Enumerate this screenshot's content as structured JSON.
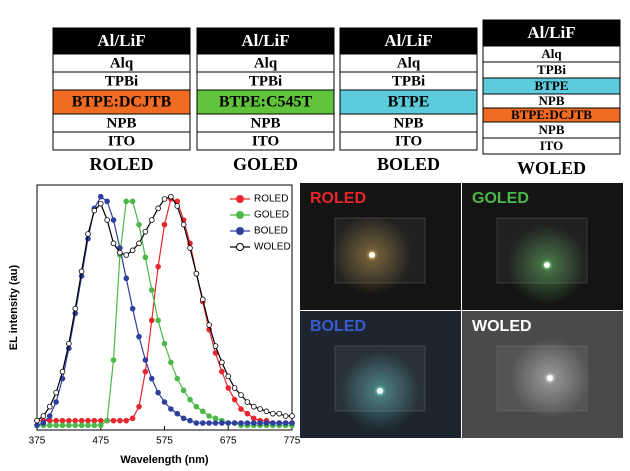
{
  "device_stacks": [
    {
      "name": "ROLED",
      "layers": [
        {
          "label": "Al/LiF",
          "color": "#000000"
        },
        {
          "label": "Alq",
          "color": "#ffffff"
        },
        {
          "label": "TPBi",
          "color": "#ffffff"
        },
        {
          "label": "BTPE:DCJTB",
          "color": "#f26b22"
        },
        {
          "label": "NPB",
          "color": "#ffffff"
        },
        {
          "label": "ITO",
          "color": "#ffffff"
        }
      ]
    },
    {
      "name": "GOLED",
      "layers": [
        {
          "label": "Al/LiF",
          "color": "#000000"
        },
        {
          "label": "Alq",
          "color": "#ffffff"
        },
        {
          "label": "TPBi",
          "color": "#ffffff"
        },
        {
          "label": "BTPE:C545T",
          "color": "#5fc43c"
        },
        {
          "label": "NPB",
          "color": "#ffffff"
        },
        {
          "label": "ITO",
          "color": "#ffffff"
        }
      ]
    },
    {
      "name": "BOLED",
      "layers": [
        {
          "label": "Al/LiF",
          "color": "#000000"
        },
        {
          "label": "Alq",
          "color": "#ffffff"
        },
        {
          "label": "TPBi",
          "color": "#ffffff"
        },
        {
          "label": "BTPE",
          "color": "#5ccbdb"
        },
        {
          "label": "NPB",
          "color": "#ffffff"
        },
        {
          "label": "ITO",
          "color": "#ffffff"
        }
      ]
    },
    {
      "name": "WOLED",
      "layers": [
        {
          "label": "Al/LiF",
          "color": "#000000"
        },
        {
          "label": "Alq",
          "color": "#ffffff"
        },
        {
          "label": "TPBi",
          "color": "#ffffff"
        },
        {
          "label": "BTPE",
          "color": "#5ccbdb"
        },
        {
          "label": "NPB",
          "color": "#ffffff"
        },
        {
          "label": "BTPE:DCJTB",
          "color": "#f26b22"
        },
        {
          "label": "NPB",
          "color": "#ffffff"
        },
        {
          "label": "ITO",
          "color": "#ffffff"
        }
      ]
    }
  ],
  "chart_data": {
    "type": "line",
    "x_label": "Wavelength (nm)",
    "y_label": "EL intensity (au)",
    "x": [
      375,
      385,
      395,
      405,
      415,
      425,
      435,
      445,
      455,
      465,
      475,
      485,
      495,
      505,
      515,
      525,
      535,
      545,
      555,
      565,
      575,
      585,
      595,
      605,
      615,
      625,
      635,
      645,
      655,
      665,
      675,
      685,
      695,
      705,
      715,
      725,
      735,
      745,
      755,
      765,
      775
    ],
    "xlim": [
      375,
      775
    ],
    "xticks": [
      375,
      475,
      575,
      675,
      775
    ],
    "ylim": [
      0,
      1.05
    ],
    "legend": "upper right",
    "series": [
      {
        "name": "ROLED",
        "color": "#e8262b",
        "marker": "filled",
        "values": [
          0.04,
          0.04,
          0.04,
          0.04,
          0.04,
          0.04,
          0.04,
          0.04,
          0.04,
          0.04,
          0.04,
          0.04,
          0.04,
          0.04,
          0.04,
          0.05,
          0.1,
          0.25,
          0.47,
          0.7,
          0.88,
          0.99,
          0.98,
          0.9,
          0.8,
          0.67,
          0.55,
          0.43,
          0.33,
          0.25,
          0.18,
          0.13,
          0.09,
          0.07,
          0.05,
          0.04,
          0.04,
          0.03,
          0.03,
          0.03,
          0.03
        ]
      },
      {
        "name": "GOLED",
        "color": "#4cb848",
        "marker": "filled",
        "values": [
          0.02,
          0.02,
          0.02,
          0.02,
          0.02,
          0.02,
          0.02,
          0.02,
          0.02,
          0.02,
          0.02,
          0.04,
          0.3,
          0.75,
          0.98,
          0.98,
          0.88,
          0.74,
          0.6,
          0.47,
          0.37,
          0.29,
          0.22,
          0.17,
          0.13,
          0.1,
          0.08,
          0.06,
          0.05,
          0.04,
          0.03,
          0.03,
          0.02,
          0.02,
          0.02,
          0.02,
          0.02,
          0.02,
          0.02,
          0.02,
          0.02
        ]
      },
      {
        "name": "BOLED",
        "color": "#2e3f9e",
        "marker": "filled",
        "values": [
          0.02,
          0.03,
          0.06,
          0.12,
          0.22,
          0.35,
          0.5,
          0.66,
          0.82,
          0.95,
          1.0,
          0.98,
          0.9,
          0.78,
          0.65,
          0.52,
          0.4,
          0.3,
          0.22,
          0.16,
          0.12,
          0.09,
          0.07,
          0.05,
          0.04,
          0.03,
          0.03,
          0.03,
          0.03,
          0.03,
          0.03,
          0.03,
          0.03,
          0.03,
          0.03,
          0.03,
          0.03,
          0.03,
          0.03,
          0.03,
          0.03
        ]
      },
      {
        "name": "WOLED",
        "color": "#000000",
        "marker": "hollow",
        "values": [
          0.04,
          0.06,
          0.1,
          0.16,
          0.25,
          0.37,
          0.52,
          0.68,
          0.84,
          0.94,
          0.97,
          0.9,
          0.8,
          0.76,
          0.75,
          0.77,
          0.8,
          0.85,
          0.9,
          0.95,
          0.99,
          1.0,
          0.96,
          0.88,
          0.78,
          0.67,
          0.56,
          0.45,
          0.36,
          0.29,
          0.23,
          0.18,
          0.15,
          0.12,
          0.1,
          0.09,
          0.08,
          0.07,
          0.07,
          0.06,
          0.06
        ]
      }
    ]
  },
  "photos": [
    {
      "label": "ROLED",
      "label_color": "#e8262b",
      "glow": "#ffcc66"
    },
    {
      "label": "GOLED",
      "label_color": "#4cb848",
      "glow": "#88ff88"
    },
    {
      "label": "BOLED",
      "label_color": "#3a5bd0",
      "glow": "#88ffee"
    },
    {
      "label": "WOLED",
      "label_color": "#ffffff",
      "glow": "#ffffff"
    }
  ]
}
